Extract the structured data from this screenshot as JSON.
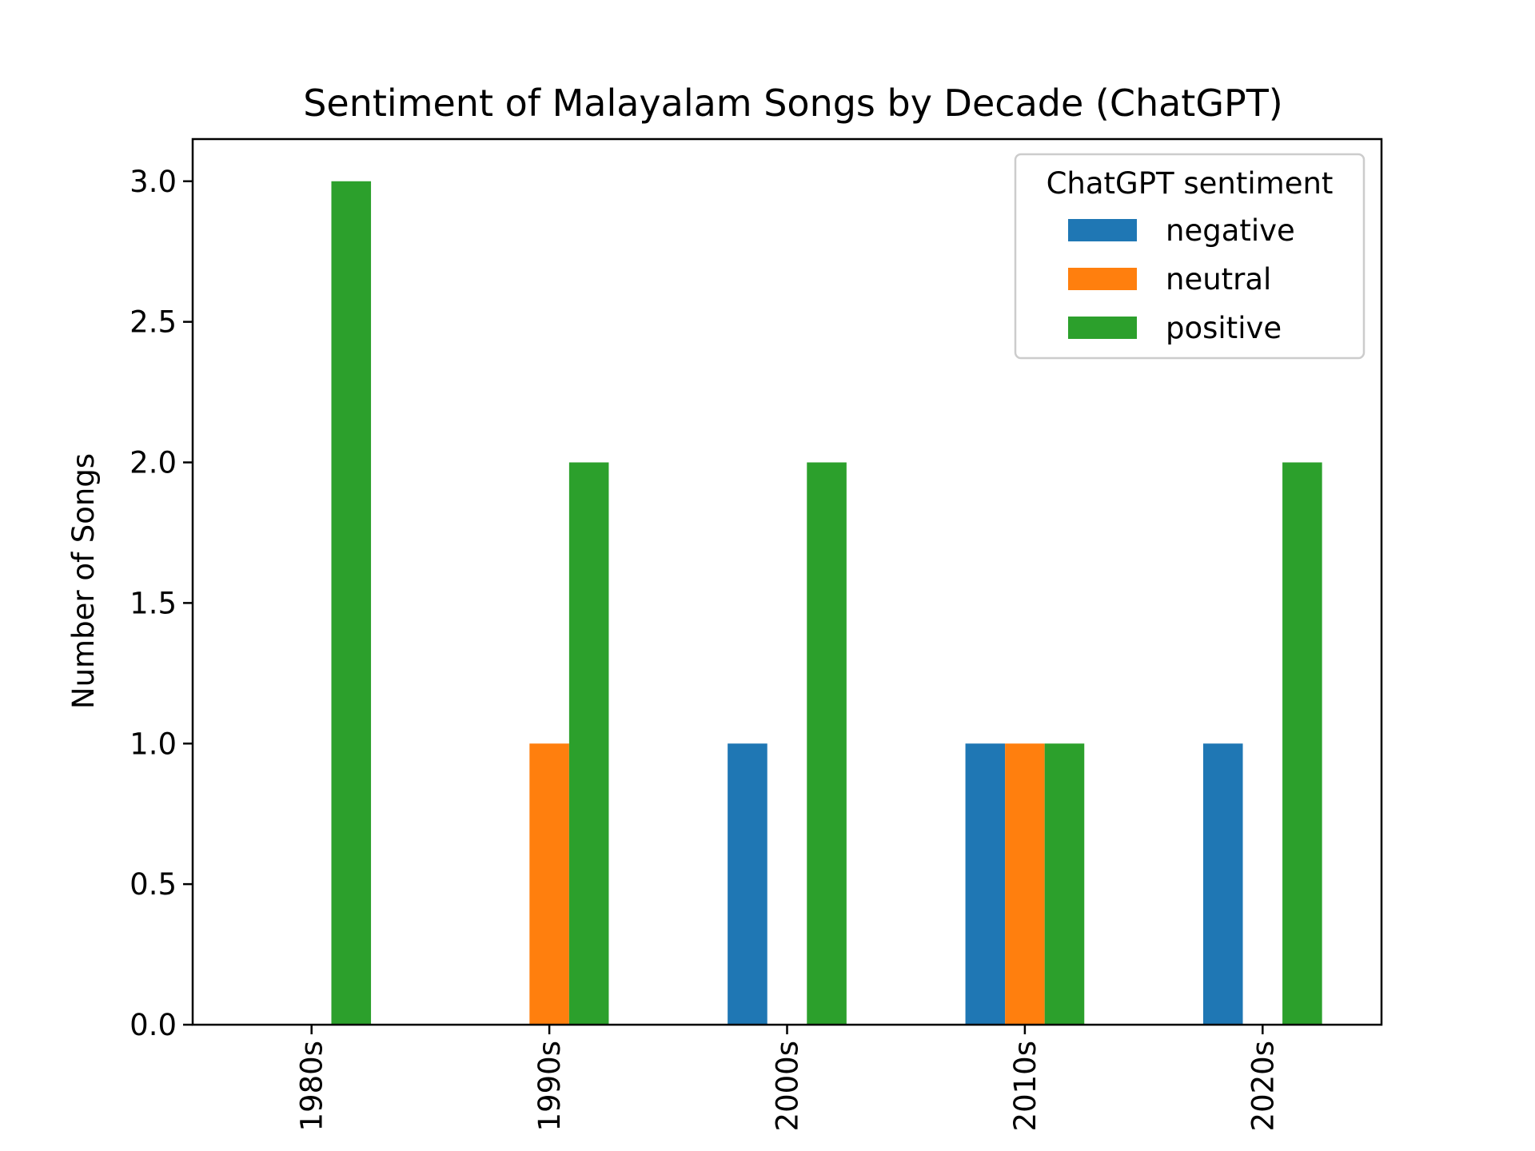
{
  "chart_data": {
    "type": "bar",
    "title": "Sentiment of Malayalam Songs by Decade (ChatGPT)",
    "xlabel": "",
    "ylabel": "Number of Songs",
    "categories": [
      "1980s",
      "1990s",
      "2000s",
      "2010s",
      "2020s"
    ],
    "series": [
      {
        "name": "negative",
        "values": [
          0,
          0,
          1,
          1,
          1
        ],
        "color": "#1f77b4"
      },
      {
        "name": "neutral",
        "values": [
          0,
          1,
          0,
          1,
          0
        ],
        "color": "#ff7f0e"
      },
      {
        "name": "positive",
        "values": [
          3,
          2,
          2,
          1,
          2
        ],
        "color": "#2ca02c"
      }
    ],
    "ylim": [
      0,
      3.15
    ],
    "yticks": [
      "0.0",
      "0.5",
      "1.0",
      "1.5",
      "2.0",
      "2.5",
      "3.0"
    ],
    "legend": {
      "title": "ChatGPT sentiment",
      "placement": "top-right"
    },
    "grid": false
  }
}
